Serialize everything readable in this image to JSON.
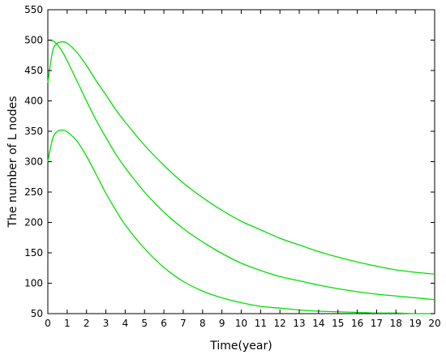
{
  "chart_data": {
    "type": "line",
    "title": "",
    "xlabel": "Time(year)",
    "ylabel": "The number of L nodes",
    "xlim": [
      0,
      20
    ],
    "ylim": [
      50,
      550
    ],
    "grid": false,
    "xticks": [
      0,
      1,
      2,
      3,
      4,
      5,
      6,
      7,
      8,
      9,
      10,
      11,
      12,
      13,
      14,
      15,
      16,
      17,
      18,
      19,
      20
    ],
    "yticks": [
      50,
      100,
      150,
      200,
      250,
      300,
      350,
      400,
      450,
      500,
      550
    ],
    "line_color": "#00e000",
    "series": [
      {
        "x": [
          0,
          0.25,
          0.5,
          0.75,
          1,
          1.5,
          2,
          2.5,
          3,
          3.5,
          4,
          5,
          6,
          7,
          8,
          9,
          10,
          11,
          12,
          13,
          14,
          15,
          16,
          17,
          18,
          19,
          20
        ],
        "y": [
          430,
          482,
          495,
          497,
          495,
          480,
          458,
          433,
          410,
          386,
          365,
          327,
          294,
          265,
          241,
          220,
          202,
          188,
          174,
          163,
          152,
          143,
          135,
          128,
          122,
          118,
          115
        ]
      },
      {
        "x": [
          0,
          0.25,
          0.5,
          0.75,
          1,
          1.5,
          2,
          2.5,
          3,
          3.5,
          4,
          5,
          6,
          7,
          8,
          9,
          10,
          11,
          12,
          13,
          14,
          15,
          16,
          17,
          18,
          19,
          20
        ],
        "y": [
          500,
          499,
          492,
          481,
          466,
          433,
          400,
          368,
          340,
          313,
          290,
          250,
          217,
          190,
          168,
          149,
          133,
          121,
          111,
          104,
          97,
          91,
          86,
          82,
          79,
          76,
          73
        ]
      },
      {
        "x": [
          0,
          0.25,
          0.5,
          0.75,
          1,
          1.5,
          2,
          2.5,
          3,
          3.5,
          4,
          5,
          6,
          7,
          8,
          9,
          10,
          11,
          12,
          13,
          14,
          15,
          16,
          17,
          18,
          19,
          20
        ],
        "y": [
          300,
          338,
          350,
          352,
          349,
          334,
          309,
          279,
          248,
          221,
          196,
          157,
          126,
          103,
          87,
          76,
          68,
          62,
          59,
          56,
          54,
          53,
          52,
          51,
          51,
          50,
          50
        ]
      }
    ]
  }
}
